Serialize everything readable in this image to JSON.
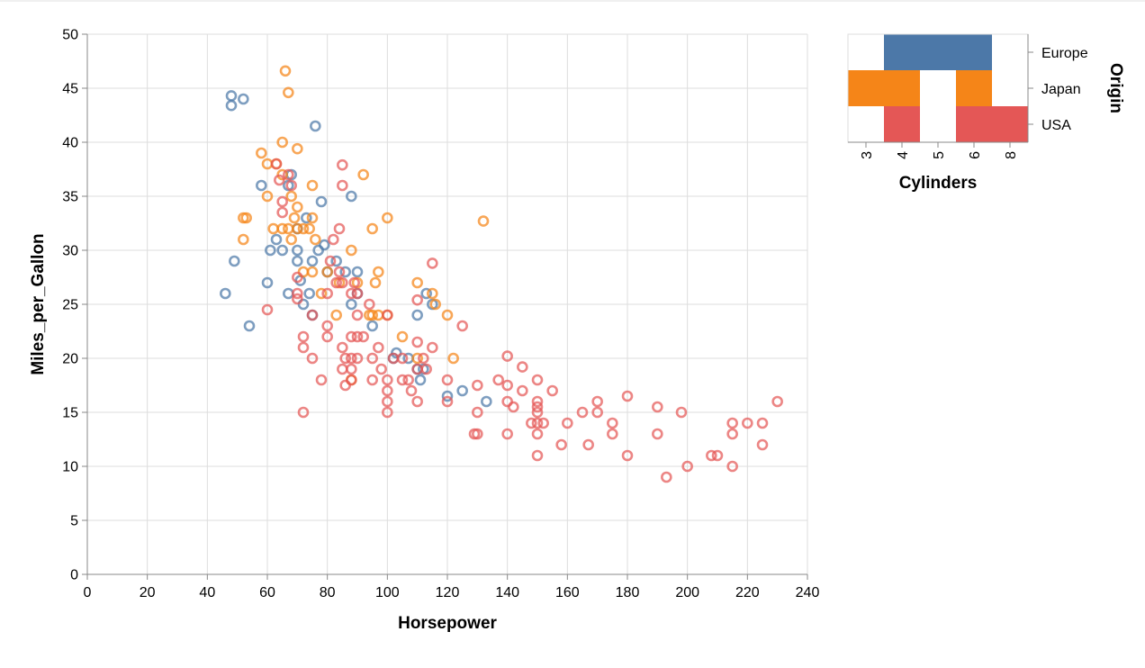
{
  "chart_data": [
    {
      "type": "scatter",
      "title": "",
      "xlabel": "Horsepower",
      "ylabel": "Miles_per_Gallon",
      "xlim": [
        0,
        240
      ],
      "ylim": [
        0,
        50
      ],
      "xticks": [
        "0",
        "20",
        "40",
        "60",
        "80",
        "100",
        "120",
        "140",
        "160",
        "180",
        "200",
        "220",
        "240"
      ],
      "yticks": [
        "0",
        "5",
        "10",
        "15",
        "20",
        "25",
        "30",
        "35",
        "40",
        "45",
        "50"
      ],
      "grid": true,
      "mark": "open circle",
      "colors": {
        "Europe": "#4c78a8",
        "Japan": "#f58518",
        "USA": "#e45756"
      },
      "series": [
        {
          "origin": "Europe",
          "x": [
            46,
            48,
            48,
            49,
            52,
            54,
            58,
            60,
            61,
            63,
            65,
            67,
            67,
            68,
            70,
            70,
            70,
            71,
            72,
            73,
            74,
            75,
            75,
            76,
            77,
            78,
            79,
            80,
            83,
            86,
            88,
            88,
            90,
            90,
            95,
            102,
            103,
            107,
            110,
            110,
            111,
            112,
            113,
            115,
            120,
            125,
            133
          ],
          "y": [
            26,
            44.3,
            43.4,
            29,
            44,
            23,
            36,
            27,
            30,
            31,
            30,
            26,
            36,
            37,
            30,
            29,
            32,
            27.2,
            25,
            33,
            26,
            24,
            29,
            41.5,
            30,
            34.5,
            30.5,
            28,
            29,
            28,
            25,
            35,
            28,
            26,
            23,
            20,
            20.5,
            20,
            19,
            24,
            18,
            19,
            26,
            25,
            16.5,
            17,
            16
          ]
        },
        {
          "origin": "Japan",
          "x": [
            52,
            52,
            53,
            58,
            60,
            60,
            62,
            63,
            65,
            65,
            65,
            66,
            67,
            67,
            68,
            68,
            69,
            70,
            70,
            70,
            72,
            72,
            74,
            75,
            75,
            75,
            76,
            78,
            80,
            83,
            84,
            88,
            88,
            90,
            92,
            94,
            95,
            95,
            96,
            97,
            97,
            100,
            100,
            105,
            110,
            110,
            115,
            116,
            120,
            122,
            132
          ],
          "y": [
            31,
            33,
            33,
            39,
            38,
            35,
            32,
            38,
            40,
            37,
            32,
            46.6,
            44.6,
            32,
            35,
            31,
            33,
            39.4,
            34,
            32,
            28,
            32,
            32,
            28,
            36,
            33,
            31,
            26,
            28,
            24,
            27,
            30,
            18,
            27,
            37,
            24,
            32,
            24,
            27,
            28,
            24,
            33,
            24,
            22,
            27,
            20,
            26,
            25,
            24,
            20,
            32.7
          ]
        },
        {
          "origin": "USA",
          "x": [
            60,
            63,
            64,
            65,
            65,
            67,
            68,
            70,
            70,
            70,
            72,
            72,
            72,
            75,
            75,
            78,
            80,
            80,
            80,
            81,
            82,
            83,
            84,
            84,
            85,
            85,
            85,
            85,
            85,
            86,
            86,
            88,
            88,
            88,
            88,
            88,
            89,
            90,
            90,
            90,
            90,
            92,
            94,
            95,
            95,
            97,
            98,
            100,
            100,
            100,
            100,
            100,
            102,
            105,
            105,
            107,
            108,
            110,
            110,
            110,
            110,
            112,
            113,
            115,
            115,
            120,
            120,
            125,
            129,
            130,
            130,
            130,
            137,
            140,
            140,
            140,
            140,
            142,
            145,
            145,
            148,
            150,
            150,
            150,
            150,
            150,
            150,
            150,
            152,
            155,
            158,
            160,
            165,
            167,
            170,
            170,
            175,
            175,
            180,
            180,
            190,
            190,
            193,
            198,
            200,
            208,
            210,
            215,
            215,
            215,
            220,
            225,
            225,
            230
          ],
          "y": [
            24.5,
            38,
            36.5,
            34.5,
            33.5,
            37,
            36,
            27.5,
            26,
            25.5,
            22,
            21,
            15,
            24,
            20,
            18,
            26,
            23,
            22,
            29,
            31,
            27,
            32,
            28,
            37.9,
            36,
            27,
            21,
            19,
            17.5,
            20,
            26,
            22,
            20,
            19,
            18,
            27,
            26,
            24,
            20,
            22,
            22,
            25,
            20,
            18,
            21,
            19,
            24,
            18,
            17,
            16,
            15,
            20,
            20,
            18,
            18,
            17,
            25.4,
            21.5,
            19,
            16,
            20,
            19,
            28.8,
            21,
            18,
            16,
            23,
            13,
            17.5,
            15,
            13,
            18,
            20.2,
            17.5,
            16,
            13,
            15.5,
            19.2,
            17,
            14,
            18,
            16,
            15.5,
            15,
            14,
            13,
            11,
            14,
            17,
            12,
            14,
            15,
            12,
            16,
            15,
            14,
            13,
            16.5,
            11,
            15.5,
            13,
            9,
            15,
            10,
            11,
            11,
            14,
            13,
            10,
            14,
            14,
            12,
            16
          ]
        }
      ]
    },
    {
      "type": "heatmap",
      "title": "",
      "xlabel": "Cylinders",
      "ylabel": "Origin",
      "x_categories": [
        "3",
        "4",
        "5",
        "6",
        "8"
      ],
      "y_categories": [
        "Europe",
        "Japan",
        "USA"
      ],
      "cells": [
        {
          "cylinders": "4",
          "origin": "Europe",
          "color": "#4c78a8"
        },
        {
          "cylinders": "5",
          "origin": "Europe",
          "color": "#4c78a8"
        },
        {
          "cylinders": "6",
          "origin": "Europe",
          "color": "#4c78a8"
        },
        {
          "cylinders": "3",
          "origin": "Japan",
          "color": "#f58518"
        },
        {
          "cylinders": "4",
          "origin": "Japan",
          "color": "#f58518"
        },
        {
          "cylinders": "6",
          "origin": "Japan",
          "color": "#f58518"
        },
        {
          "cylinders": "4",
          "origin": "USA",
          "color": "#e45756"
        },
        {
          "cylinders": "6",
          "origin": "USA",
          "color": "#e45756"
        },
        {
          "cylinders": "8",
          "origin": "USA",
          "color": "#e45756"
        }
      ]
    }
  ]
}
